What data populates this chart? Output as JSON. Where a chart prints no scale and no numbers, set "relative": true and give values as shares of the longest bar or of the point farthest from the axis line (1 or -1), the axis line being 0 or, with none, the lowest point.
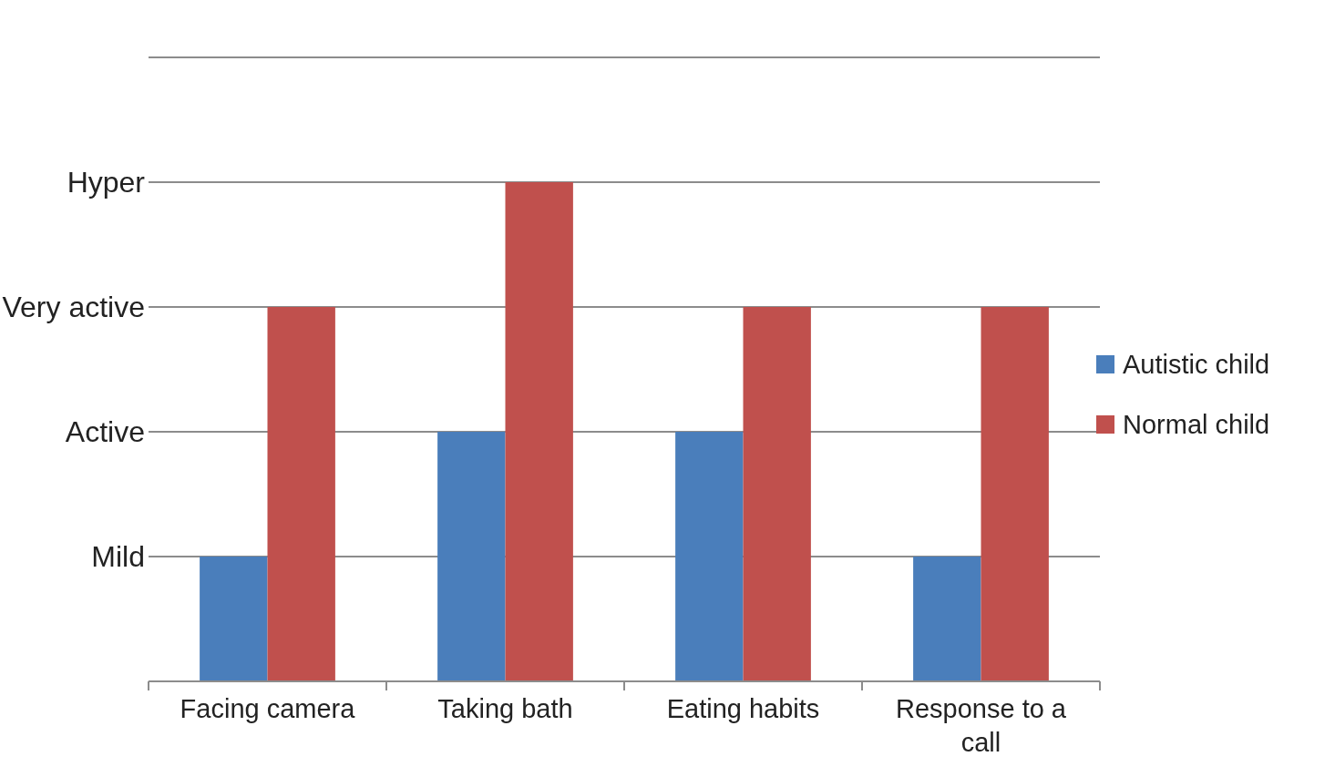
{
  "chart_data": {
    "type": "bar",
    "relative": true,
    "categories": [
      "Facing camera",
      "Taking bath",
      "Eating habits",
      "Response to a call"
    ],
    "series": [
      {
        "name": "Autistic child",
        "color": "#4a7ebb",
        "values": [
          0.25,
          0.5,
          0.5,
          0.25
        ]
      },
      {
        "name": "Normal child",
        "color": "#c0504d",
        "values": [
          0.75,
          1,
          0.75,
          0.75
        ]
      }
    ],
    "ref_lines": [
      {
        "axis": "y",
        "value": 0.25,
        "label": "Mild",
        "color": "#8c8c8c"
      },
      {
        "axis": "y",
        "value": 0.5,
        "label": "Active",
        "color": "#8c8c8c"
      },
      {
        "axis": "y",
        "value": 0.75,
        "label": "Very active",
        "color": "#8c8c8c"
      },
      {
        "axis": "y",
        "value": 1,
        "label": "Hyper",
        "color": "#8c8c8c"
      },
      {
        "axis": "y",
        "value": 1.25,
        "label": null,
        "color": "#8c8c8c"
      }
    ],
    "legend": "right"
  }
}
